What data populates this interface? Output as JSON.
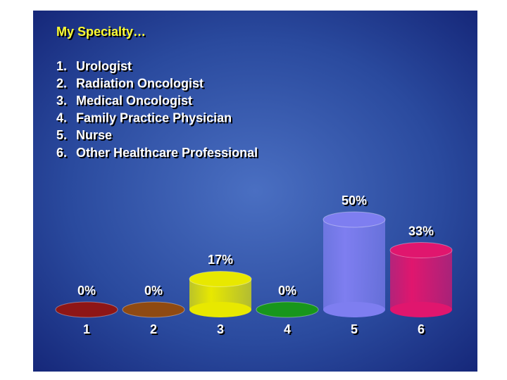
{
  "chart_data": {
    "type": "cylinder-bar",
    "title": "My Specialty…",
    "options": [
      {
        "label": "1.",
        "text": "Urologist"
      },
      {
        "label": "2.",
        "text": "Radiation Oncologist"
      },
      {
        "label": "3.",
        "text": "Medical Oncologist"
      },
      {
        "label": "4.",
        "text": "Family Practice Physician"
      },
      {
        "label": "5.",
        "text": "Nurse"
      },
      {
        "label": "6.",
        "text": "Other Healthcare Professional"
      }
    ],
    "categories": [
      "1",
      "2",
      "3",
      "4",
      "5",
      "6"
    ],
    "values": [
      0,
      0,
      17,
      0,
      50,
      33
    ],
    "value_labels": [
      "0%",
      "0%",
      "17%",
      "0%",
      "50%",
      "33%"
    ],
    "colors": [
      "#8e1616",
      "#8f4a12",
      "#e8e800",
      "#18961c",
      "#7e7ef0",
      "#e0166e"
    ]
  }
}
